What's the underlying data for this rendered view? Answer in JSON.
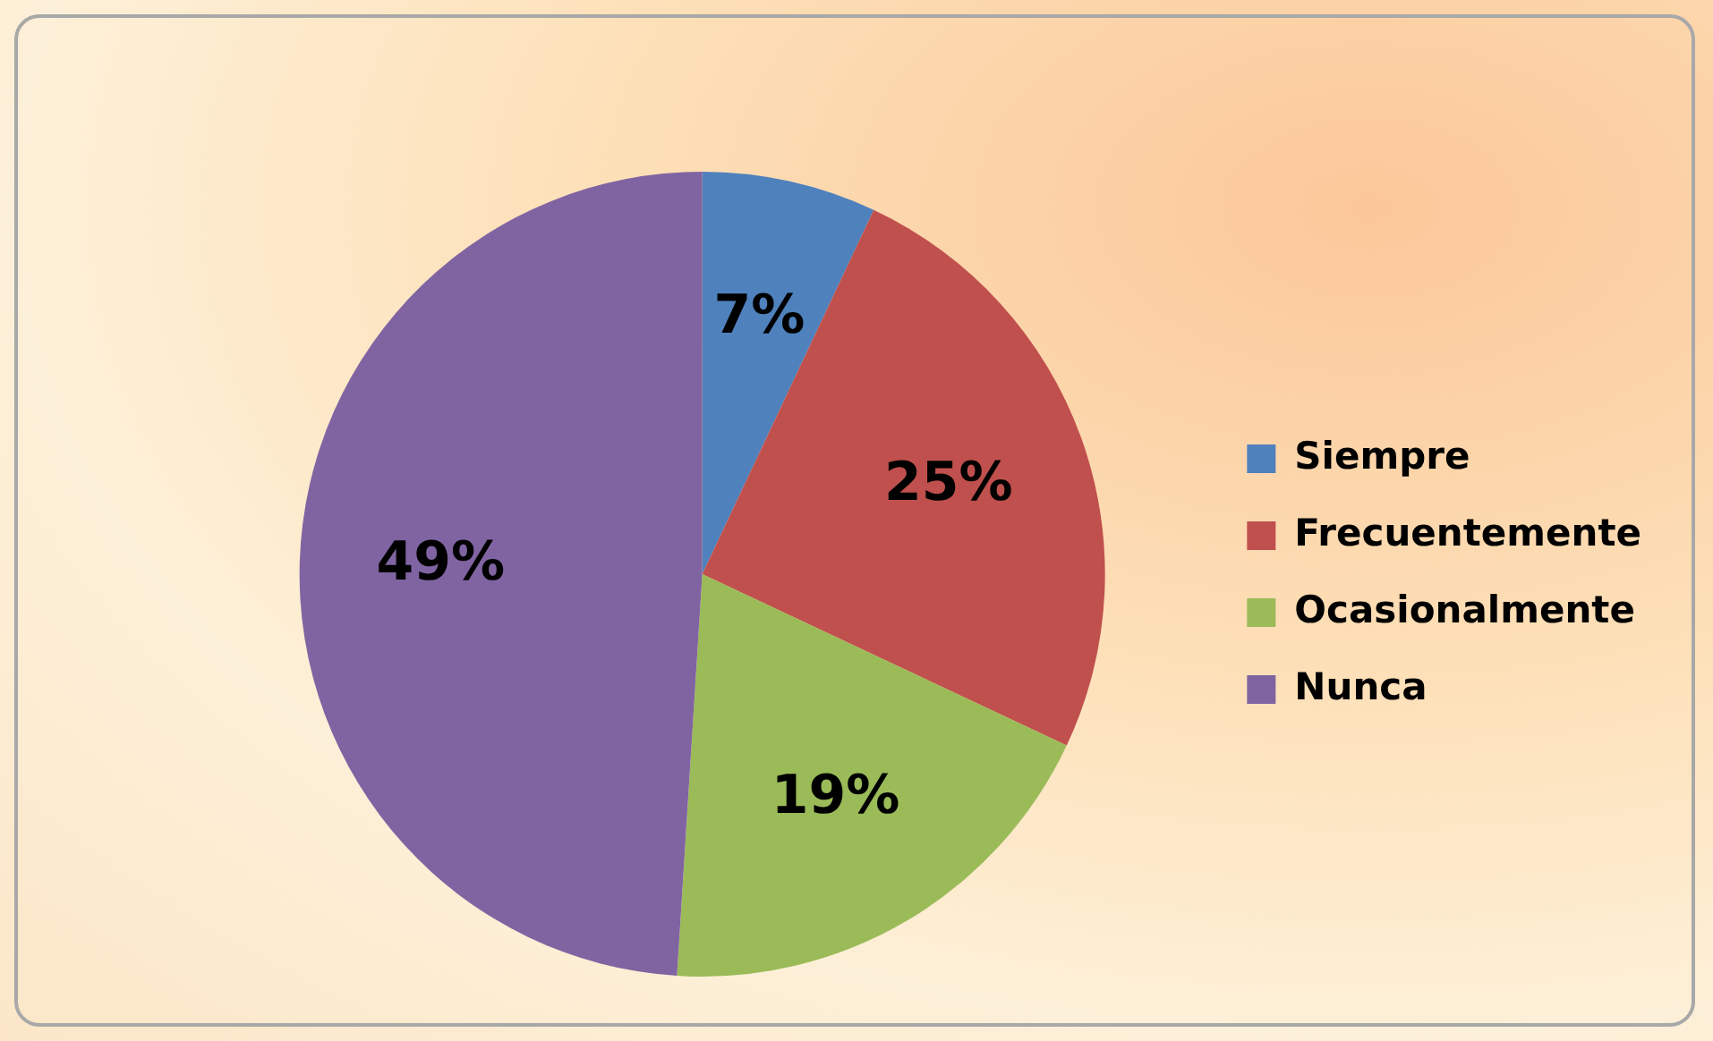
{
  "chart_data": {
    "type": "pie",
    "categories": [
      "Siempre",
      "Frecuentemente",
      "Ocasionalmente",
      "Nunca"
    ],
    "values": [
      7,
      25,
      19,
      49
    ],
    "value_labels": [
      "7%",
      "25%",
      "19%",
      "49%"
    ],
    "colors": [
      "#4f81bd",
      "#c0504d",
      "#9bbb59",
      "#8064a2"
    ],
    "legend": "right"
  }
}
